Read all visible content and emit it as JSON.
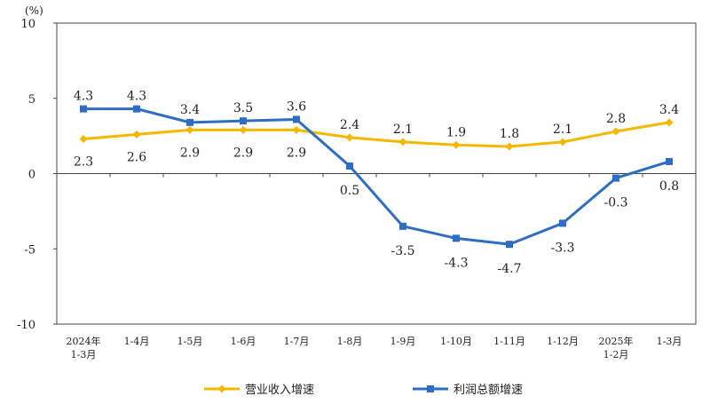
{
  "chart_data": {
    "type": "line",
    "unit_label": "(%)",
    "categories": [
      [
        "2024年",
        "1-3月"
      ],
      [
        "1-4月"
      ],
      [
        "1-5月"
      ],
      [
        "1-6月"
      ],
      [
        "1-7月"
      ],
      [
        "1-8月"
      ],
      [
        "1-9月"
      ],
      [
        "1-10月"
      ],
      [
        "1-11月"
      ],
      [
        "1-12月"
      ],
      [
        "2025年",
        "1-2月"
      ],
      [
        "1-3月"
      ]
    ],
    "ylim": [
      -10,
      10
    ],
    "yticks": [
      -10,
      -5,
      0,
      5,
      10
    ],
    "legend_position": "bottom",
    "series": [
      {
        "name": "营业收入增速",
        "color": "#F5B800",
        "marker": "diamond",
        "values": [
          2.3,
          2.6,
          2.9,
          2.9,
          2.9,
          2.4,
          2.1,
          1.9,
          1.8,
          2.1,
          2.8,
          3.4
        ],
        "labels": [
          "2.3",
          "2.6",
          "2.9",
          "2.9",
          "2.9",
          "2.4",
          "2.1",
          "1.9",
          "1.8",
          "2.1",
          "2.8",
          "3.4"
        ]
      },
      {
        "name": "利润总额增速",
        "color": "#2E6DC4",
        "marker": "square",
        "values": [
          4.3,
          4.3,
          3.4,
          3.5,
          3.6,
          0.5,
          -3.5,
          -4.3,
          -4.7,
          -3.3,
          -0.3,
          0.8
        ],
        "labels": [
          "4.3",
          "4.3",
          "3.4",
          "3.5",
          "3.6",
          "0.5",
          "-3.5",
          "-4.3",
          "-4.7",
          "-3.3",
          "-0.3",
          "0.8"
        ]
      }
    ]
  }
}
